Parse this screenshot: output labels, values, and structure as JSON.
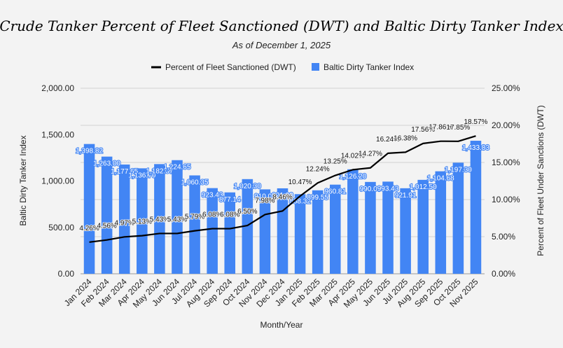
{
  "chart_data": {
    "type": "bar",
    "title": "Crude Tanker Percent of Fleet Sanctioned (DWT) and Baltic Dirty Tanker Index",
    "subtitle": "As of December 1, 2025",
    "xlabel": "Month/Year",
    "ylabel": "Baltic Dirty Tanker Index",
    "y2label": "Percent of Fleet Under Sanctions (DWT)",
    "ylim": [
      0,
      2000
    ],
    "y2lim": [
      0,
      25
    ],
    "yticks": [
      "0.00",
      "500.00",
      "1,000.00",
      "1,500.00",
      "2,000.00"
    ],
    "y2ticks": [
      "0.00%",
      "5.00%",
      "10.00%",
      "15.00%",
      "20.00%",
      "25.00%"
    ],
    "legend_position": "top",
    "grid": true,
    "categories": [
      "Jan 2024",
      "Feb 2024",
      "Mar 2024",
      "Apr 2024",
      "May 2024",
      "Jun 2024",
      "Jul 2024",
      "Aug 2024",
      "Sep 2024",
      "Oct 2024",
      "Nov 2024",
      "Dec 2024",
      "Jan 2025",
      "Feb 2025",
      "Mar 2025",
      "Apr 2025",
      "May 2025",
      "Jun 2025",
      "Jul 2025",
      "Aug 2025",
      "Sep 2025",
      "Oct 2025",
      "Nov 2025"
    ],
    "series": [
      {
        "name": "Percent of Fleet Sanctioned (DWT)",
        "type": "line",
        "axis": "right",
        "color": "#000000",
        "values": [
          4.26,
          4.56,
          4.97,
          5.13,
          5.43,
          5.43,
          5.79,
          6.08,
          6.08,
          6.5,
          7.98,
          8.46,
          10.47,
          12.24,
          13.25,
          14.02,
          14.27,
          16.24,
          16.38,
          17.56,
          17.86,
          17.85,
          18.57
        ],
        "labels": [
          "4.26%",
          "4.56%",
          "4.97%",
          "5.13%",
          "5.43%",
          "5.43%",
          "5.79%",
          "6.08%",
          "6.08%",
          "6.50%",
          "7.98%",
          "8.46%",
          "10.47%",
          "12.24%",
          "13.25%",
          "14.02%",
          "14.27%",
          "16.24%",
          "16.38%",
          "17.56%",
          "17.86%",
          "17.85%",
          "18.57%"
        ]
      },
      {
        "name": "Baltic Dirty Tanker Index",
        "type": "bar",
        "axis": "left",
        "color": "#4285f4",
        "values": [
          1398.82,
          1263.0,
          1177.65,
          1136.7,
          1182.37,
          1224.65,
          1060.35,
          923.43,
          877.14,
          1020.3,
          910.0,
          921.0,
          858.32,
          899.55,
          960.81,
          1126.2,
          990.0,
          993.43,
          921.91,
          1012.5,
          1104.68,
          1197.3,
          1433.83
        ],
        "labels": [
          "1,398.82",
          "1,263.00",
          "1,177.65",
          "1,136.70",
          "1,182.37",
          "1,224.65",
          "1,060.35",
          "923.43",
          "877.14",
          "1,020.30",
          "910.00",
          "921.00",
          "858.32",
          "899.55",
          "960.81",
          "1,126.20",
          "990.00",
          "993.43",
          "921.91",
          "1,012.50",
          "1,104.68",
          "1,197.30",
          "1,433.83"
        ]
      }
    ]
  }
}
